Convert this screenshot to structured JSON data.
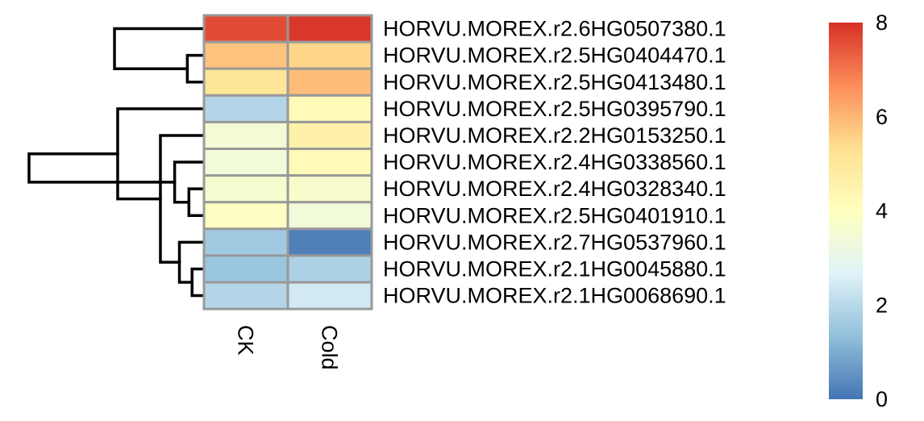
{
  "chart_data": {
    "type": "heatmap",
    "title": "",
    "columns": [
      "CK",
      "Cold"
    ],
    "rows": [
      "HORVU.MOREX.r2.6HG0507380.1",
      "HORVU.MOREX.r2.5HG0404470.1",
      "HORVU.MOREX.r2.5HG0413480.1",
      "HORVU.MOREX.r2.5HG0395790.1",
      "HORVU.MOREX.r2.2HG0153250.1",
      "HORVU.MOREX.r2.4HG0338560.1",
      "HORVU.MOREX.r2.4HG0328340.1",
      "HORVU.MOREX.r2.5HG0401910.1",
      "HORVU.MOREX.r2.7HG0537960.1",
      "HORVU.MOREX.r2.1HG0045880.1",
      "HORVU.MOREX.r2.1HG0068690.1"
    ],
    "values": [
      [
        7.6,
        7.9
      ],
      [
        5.8,
        5.5
      ],
      [
        5.1,
        5.9
      ],
      [
        1.9,
        4.2
      ],
      [
        3.5,
        4.6
      ],
      [
        3.4,
        4.2
      ],
      [
        3.6,
        3.7
      ],
      [
        3.9,
        3.4
      ],
      [
        1.6,
        0.2
      ],
      [
        1.5,
        1.8
      ],
      [
        1.9,
        2.4
      ]
    ],
    "color_scale": {
      "min": 0,
      "max": 8,
      "ticks": [
        0,
        2,
        4,
        6,
        8
      ],
      "colors": [
        "#4575b4",
        "#91bfdb",
        "#e0f3f8",
        "#ffffbf",
        "#fee090",
        "#fc8d59",
        "#d73027"
      ]
    },
    "row_dendrogram": [
      [
        9,
        10,
        0.6
      ],
      [
        7,
        6,
        0.8
      ],
      [
        8,
        11,
        1.4
      ],
      [
        12,
        5,
        1.7
      ],
      [
        13,
        4,
        2.6
      ],
      [
        1,
        2,
        0.9
      ],
      [
        15,
        3,
        5.3
      ],
      [
        0,
        16,
        5.5
      ],
      [
        17,
        14,
        10.9
      ]
    ],
    "cell_border_color": "#999999",
    "branch_color": "#000000"
  }
}
